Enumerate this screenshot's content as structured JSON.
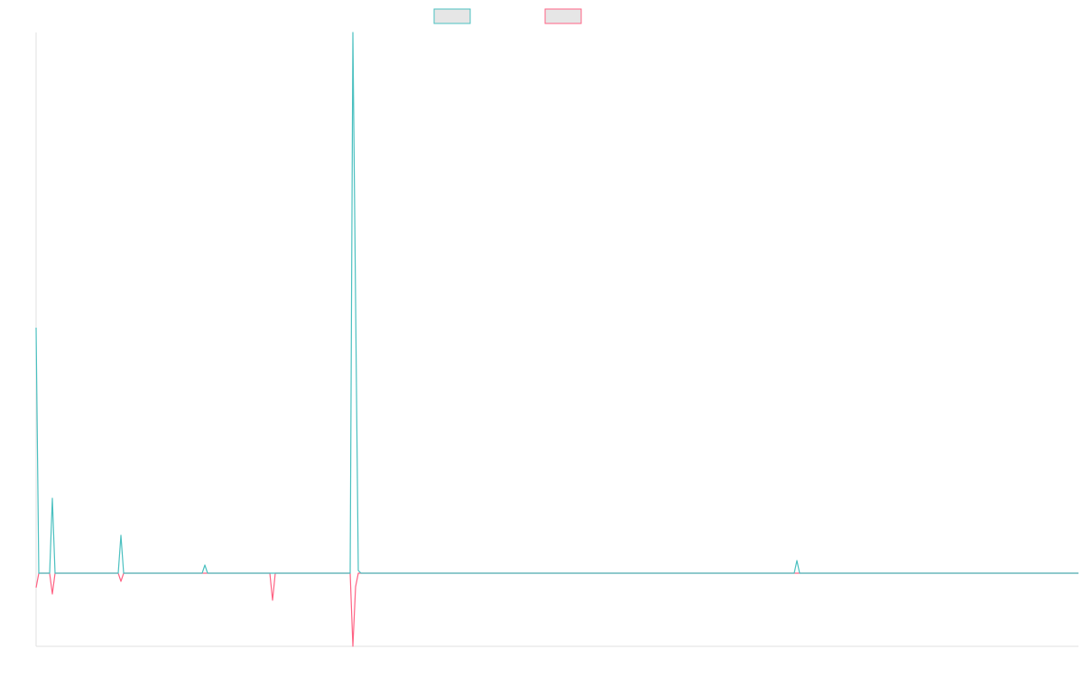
{
  "chart_data": {
    "type": "line",
    "x": [
      0,
      3,
      15,
      18,
      21,
      91,
      94,
      97,
      184,
      187,
      190,
      259,
      262,
      265,
      348,
      351,
      354,
      357,
      360,
      840,
      843,
      846,
      1155
    ],
    "series": [
      {
        "color": "#4bc0c0",
        "background": "#e6e6e6",
        "values": [
          272,
          0,
          0,
          83,
          0,
          0,
          42,
          0,
          0,
          9,
          0,
          0,
          0,
          0,
          0,
          599,
          301,
          3,
          0,
          0,
          14,
          0,
          0
        ]
      },
      {
        "color": "#ff6384",
        "background": "#e6e6e6",
        "values": [
          -16,
          0,
          0,
          -23,
          0,
          0,
          -9,
          0,
          0,
          0,
          0,
          0,
          -30,
          0,
          0,
          -81,
          -15,
          0,
          0,
          0,
          0,
          0,
          0
        ]
      }
    ],
    "xlim": [
      0,
      1155
    ],
    "ylim": [
      -81,
      599
    ],
    "axis_color": "#e0e0e0"
  }
}
